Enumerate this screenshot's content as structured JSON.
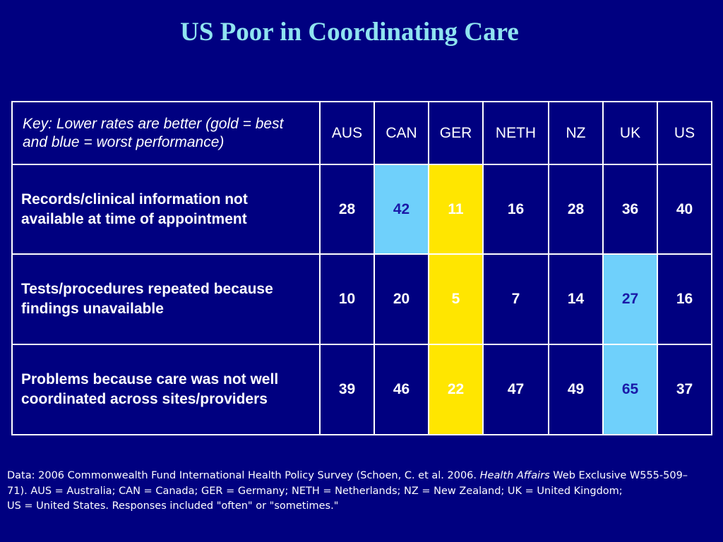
{
  "title": "US Poor in Coordinating Care",
  "table": {
    "key": "Key: Lower rates are better (gold = best and blue = worst performance)",
    "columns": [
      "AUS",
      "CAN",
      "GER",
      "NETH",
      "NZ",
      "UK",
      "US"
    ],
    "rows": [
      {
        "label": "Records/clinical information not available at time of appointment",
        "values": [
          "28",
          "42",
          "11",
          "16",
          "28",
          "36",
          "40"
        ],
        "best": "GER",
        "worst": "CAN"
      },
      {
        "label": "Tests/procedures repeated because findings unavailable",
        "values": [
          "10",
          "20",
          "5",
          "7",
          "14",
          "27",
          "16"
        ],
        "best": "GER",
        "worst": "UK"
      },
      {
        "label": "Problems because care was not well coordinated across sites/providers",
        "values": [
          "39",
          "46",
          "22",
          "47",
          "49",
          "65",
          "37"
        ],
        "best": "GER",
        "worst": "UK"
      }
    ]
  },
  "colors": {
    "background": "#000080",
    "title": "#8fe3f0",
    "best_gold": "#ffe600",
    "worst_blue": "#6fd0fb"
  },
  "footnote": {
    "part1": "Data: 2006 Commonwealth Fund International Health Policy Survey (Schoen, C. et al. 2006. ",
    "journal": "Health Affairs",
    "part2": " Web Exclusive W555-509–71). AUS = Australia; CAN = Canada; GER = Germany; NETH = Netherlands; NZ = New Zealand; UK = United Kingdom;",
    "part3": "US = United States. Responses included \"often\" or \"sometimes.\""
  }
}
